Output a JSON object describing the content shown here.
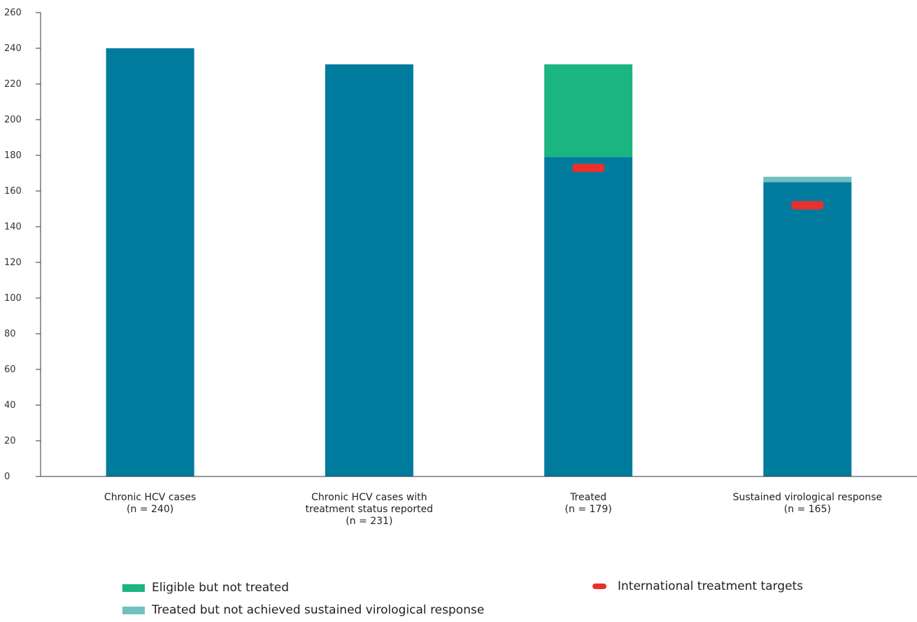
{
  "chart_data": {
    "type": "bar",
    "stacked": true,
    "categories": [
      [
        "Chronic HCV cases",
        "(n = 240)"
      ],
      [
        "Chronic HCV cases with",
        "treatment status reported",
        "(n = 231)"
      ],
      [
        "Treated",
        "(n = 179)"
      ],
      [
        "Sustained virological response",
        "(n = 165)"
      ]
    ],
    "series": [
      {
        "key": "base",
        "values": [
          240,
          231,
          179,
          165
        ],
        "color": "#007b9e"
      },
      {
        "key": "eligible",
        "name": "Eligible but not treated",
        "values": [
          0,
          0,
          52,
          0
        ],
        "color": "#1ab580"
      },
      {
        "key": "not_svr",
        "name": "Treated but not achieved sustained virological response",
        "values": [
          0,
          0,
          0,
          3
        ],
        "color": "#6fc0c2"
      }
    ],
    "targets": {
      "name": "International treatment targets",
      "values": [
        null,
        null,
        173,
        152
      ],
      "color": "#e8302d"
    },
    "ylim": [
      0,
      260
    ],
    "yticks": [
      0,
      20,
      40,
      60,
      80,
      100,
      120,
      140,
      160,
      180,
      200,
      220,
      240,
      260
    ],
    "legend_position": "bottom"
  }
}
